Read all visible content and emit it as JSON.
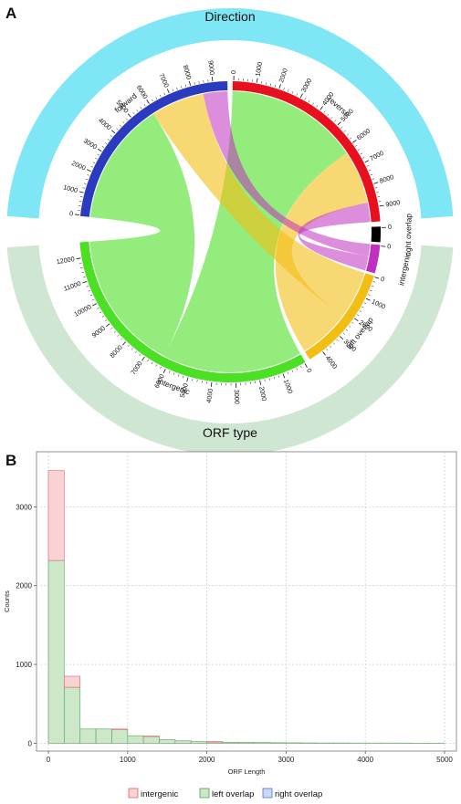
{
  "panel_a": {
    "letter": "A",
    "title_top": "Direction",
    "title_bottom": "ORF type",
    "colors": {
      "direction_band": "#7fe6f5",
      "type_band": "#cfe6d3",
      "forward": "#2b3bbf",
      "reverse": "#e8101f",
      "intergenic": "#4be024",
      "left_overlap": "#f2be14",
      "right_overlap": "#c030c0"
    },
    "segments": [
      {
        "id": "forward",
        "label": "forward",
        "ticks": [
          "0",
          "1000",
          "2000",
          "3000",
          "4000",
          "5000",
          "6000",
          "7000",
          "8000",
          "9000"
        ]
      },
      {
        "id": "reverse",
        "label": "reverse",
        "ticks": [
          "0",
          "1000",
          "2000",
          "3000",
          "4000",
          "5000",
          "6000",
          "7000",
          "8000",
          "9000"
        ]
      },
      {
        "id": "right_overlap",
        "label": "right overlap",
        "ticks": [
          "0"
        ]
      },
      {
        "id": "intergenic_small",
        "label": "intergenic",
        "ticks": [
          "0"
        ]
      },
      {
        "id": "left_overlap",
        "label": "left overlap",
        "ticks": [
          "0",
          "1000",
          "2000",
          "3000",
          "4000"
        ]
      },
      {
        "id": "intergenic",
        "label": "intergenic",
        "ticks": [
          "0",
          "1000",
          "2000",
          "3000",
          "4000",
          "5000",
          "6000",
          "7000",
          "8000",
          "9000",
          "10000",
          "11000",
          "12000"
        ]
      }
    ]
  },
  "panel_b": {
    "letter": "B",
    "legend": [
      "intergenic",
      "left  overlap",
      "right  overlap"
    ],
    "colors": {
      "intergenic": "#f9d3d3",
      "intergenic_edge": "#e06070",
      "left_overlap": "#cde8c8",
      "left_overlap_edge": "#55a055",
      "right_overlap": "#cdd8f5",
      "right_overlap_edge": "#5070d0"
    }
  },
  "chart_data": {
    "type": "bar",
    "xlabel": "ORF Length",
    "ylabel": "Counts",
    "xlim": [
      -150,
      5150
    ],
    "ylim": [
      -100,
      3700
    ],
    "x_ticks": [
      0,
      1000,
      2000,
      3000,
      4000,
      5000
    ],
    "y_ticks": [
      0,
      1000,
      2000,
      3000
    ],
    "grid": true,
    "legend_position": "bottom",
    "bin_width": 200,
    "bin_starts": [
      0,
      200,
      400,
      600,
      800,
      1000,
      1200,
      1400,
      1600,
      1800,
      2000,
      2200,
      2400,
      2600,
      2800,
      3000,
      3200,
      3400,
      3600,
      3800,
      4000,
      4200,
      4400,
      4600,
      4800
    ],
    "stacked": true,
    "series": [
      {
        "name": "left  overlap",
        "values": [
          2320,
          710,
          180,
          180,
          175,
          95,
          85,
          45,
          30,
          20,
          15,
          12,
          10,
          8,
          6,
          5,
          4,
          3,
          3,
          2,
          2,
          2,
          2,
          1,
          1
        ]
      },
      {
        "name": "intergenic",
        "values": [
          1140,
          140,
          0,
          0,
          5,
          0,
          5,
          0,
          0,
          0,
          5,
          0,
          0,
          0,
          0,
          0,
          0,
          0,
          0,
          0,
          0,
          0,
          0,
          0,
          0
        ]
      },
      {
        "name": "right  overlap",
        "values": [
          0,
          0,
          0,
          0,
          0,
          0,
          0,
          0,
          0,
          0,
          0,
          0,
          0,
          0,
          0,
          0,
          0,
          0,
          0,
          0,
          0,
          0,
          0,
          0,
          0
        ]
      }
    ]
  }
}
